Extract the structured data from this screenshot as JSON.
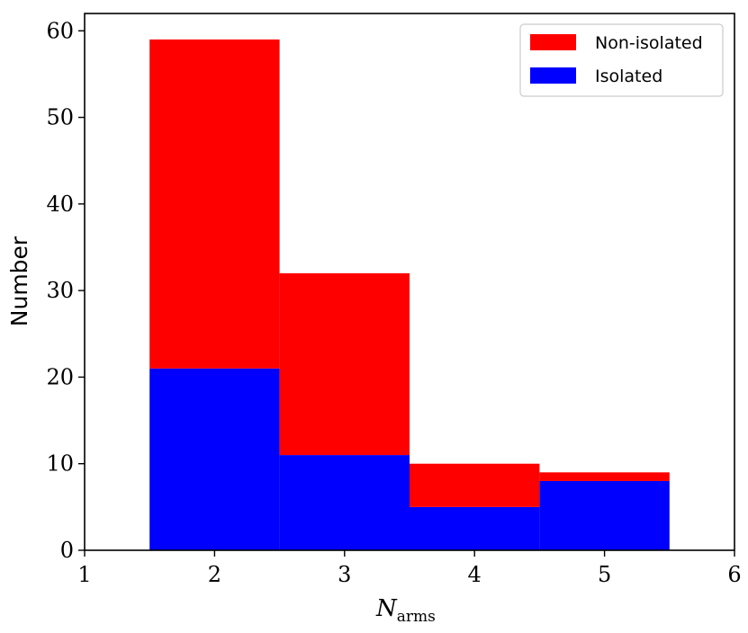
{
  "chart_data": {
    "type": "bar",
    "stacked": true,
    "bin_edges": [
      1.5,
      2.5,
      3.5,
      4.5,
      5.5
    ],
    "bin_centers": [
      2,
      3,
      4,
      5
    ],
    "series": [
      {
        "name": "Isolated",
        "color": "#0000ff",
        "values": [
          21,
          11,
          5,
          8
        ]
      },
      {
        "name": "Non-isolated",
        "color": "#ff0000",
        "values": [
          38,
          21,
          5,
          1
        ]
      }
    ],
    "totals": [
      59,
      32,
      10,
      9
    ],
    "xlabel": "N",
    "xlabel_subscript": "arms",
    "ylabel": "Number",
    "xlim": [
      1,
      6
    ],
    "ylim": [
      0,
      62
    ],
    "xticks": [
      "1",
      "2",
      "3",
      "4",
      "5",
      "6"
    ],
    "yticks": [
      "0",
      "10",
      "20",
      "30",
      "40",
      "50",
      "60"
    ],
    "grid": false,
    "legend_position": "top-right",
    "legend": [
      {
        "label": "Non-isolated",
        "color": "#ff0000"
      },
      {
        "label": "Isolated",
        "color": "#0000ff"
      }
    ]
  }
}
